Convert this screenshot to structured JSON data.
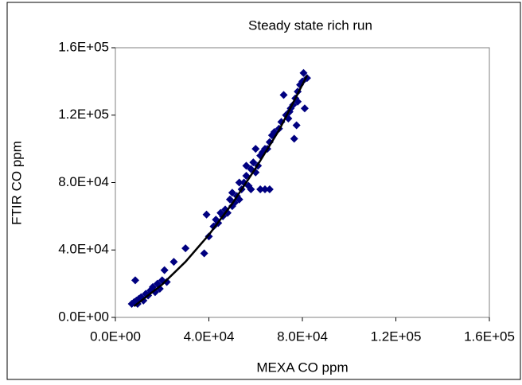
{
  "chart_data": {
    "type": "scatter",
    "title": "Steady state rich run",
    "x_label": "MEXA CO ppm",
    "y_label": "FTIR CO ppm",
    "xlim": [
      0,
      160000
    ],
    "ylim": [
      0,
      160000
    ],
    "xticks": [
      {
        "value": 0,
        "label": "0.0E+00"
      },
      {
        "value": 40000,
        "label": "4.0E+04"
      },
      {
        "value": 80000,
        "label": "8.0E+04"
      },
      {
        "value": 120000,
        "label": "1.2E+05"
      },
      {
        "value": 160000,
        "label": "1.6E+05"
      }
    ],
    "yticks": [
      {
        "value": 0,
        "label": "0.0E+00"
      },
      {
        "value": 40000,
        "label": "4.0E+04"
      },
      {
        "value": 80000,
        "label": "8.0E+04"
      },
      {
        "value": 120000,
        "label": "1.2E+05"
      },
      {
        "value": 160000,
        "label": "1.6E+05"
      }
    ],
    "series": [
      {
        "mode": "markers",
        "color": "#000080",
        "x": [
          7000,
          8000,
          8500,
          9000,
          9500,
          10000,
          11000,
          12000,
          13000,
          14000,
          15000,
          16000,
          17000,
          18000,
          19000,
          20000,
          21000,
          22000,
          25000,
          30000,
          38000,
          39000,
          40000,
          42000,
          43000,
          44000,
          45000,
          46000,
          47000,
          48000,
          49000,
          50000,
          51000,
          52000,
          53000,
          54000,
          55000,
          56000,
          57000,
          58000,
          59000,
          60000,
          61000,
          62000,
          63000,
          64000,
          65000,
          66000,
          66000,
          67000,
          68000,
          58000,
          62000,
          70000,
          71000,
          72000,
          73000,
          74000,
          75000,
          76000,
          76500,
          77000,
          78000,
          79000,
          80000,
          80500,
          81000,
          82000,
          78000,
          77500,
          74500,
          60000,
          56000,
          53000,
          50000,
          64000
        ],
        "values": [
          8000,
          9000,
          22000,
          10000,
          8000,
          11000,
          12000,
          10000,
          14000,
          13000,
          16000,
          18000,
          15000,
          20000,
          17000,
          22000,
          28000,
          21000,
          33000,
          41000,
          38000,
          61000,
          48000,
          54000,
          58000,
          56000,
          62000,
          60000,
          64000,
          62000,
          70000,
          66000,
          68000,
          72000,
          70000,
          76000,
          80000,
          84000,
          78000,
          88000,
          92000,
          86000,
          90000,
          96000,
          98000,
          76000,
          100000,
          76000,
          104000,
          108000,
          110000,
          76000,
          76000,
          112000,
          116000,
          132000,
          120000,
          118000,
          124000,
          126000,
          106000,
          130000,
          134000,
          138000,
          140000,
          145000,
          124000,
          142000,
          128000,
          114000,
          122000,
          100000,
          90000,
          80000,
          74000,
          100000
        ]
      },
      {
        "mode": "line",
        "color": "#000000",
        "x": [
          8000,
          20000,
          30000,
          40000,
          50000,
          60000,
          70000,
          82000
        ],
        "values": [
          6600,
          19500,
          33000,
          49000,
          67500,
          88500,
          111000,
          143500
        ]
      }
    ]
  }
}
